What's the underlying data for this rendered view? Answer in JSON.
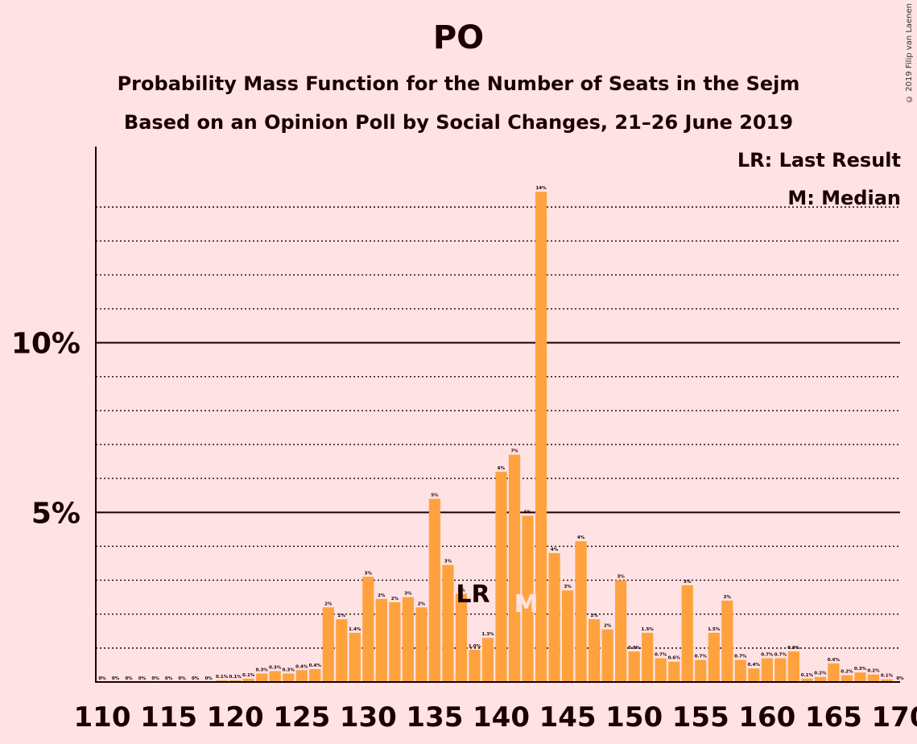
{
  "title": "PO",
  "subtitle1": "Probability Mass Function for the Number of Seats in the Sejm",
  "subtitle2": "Based on an Opinion Poll by Social Changes, 21–26 June 2019",
  "copyright": "© 2019 Filip van Laenen",
  "legend": {
    "lr": "LR: Last Result",
    "m": "M: Median"
  },
  "colors": {
    "background": "#fee2e4",
    "bar": "#ffa23e",
    "axis": "#1a0000",
    "marker_text_light": "#fee2e4"
  },
  "chart_data": {
    "type": "bar",
    "xlabel": "",
    "ylabel": "",
    "x_ticks": [
      110,
      115,
      120,
      125,
      130,
      135,
      140,
      145,
      150,
      155,
      160,
      165,
      170
    ],
    "y_ticks": [
      {
        "value": 5,
        "label": "5%"
      },
      {
        "value": 10,
        "label": "10%"
      }
    ],
    "ylim": [
      0,
      15.7
    ],
    "minor_gridlines": [
      1,
      2,
      3,
      4,
      6,
      7,
      8,
      9,
      11,
      12,
      13,
      14
    ],
    "grid": true,
    "last_result_seat": 138,
    "median_seat": 142,
    "markers": {
      "lr": "LR",
      "m": "M"
    },
    "seats": [
      110,
      111,
      112,
      113,
      114,
      115,
      116,
      117,
      118,
      119,
      120,
      121,
      122,
      123,
      124,
      125,
      126,
      127,
      128,
      129,
      130,
      131,
      132,
      133,
      134,
      135,
      136,
      137,
      138,
      139,
      140,
      141,
      142,
      143,
      144,
      145,
      146,
      147,
      148,
      149,
      150,
      151,
      152,
      153,
      154,
      155,
      156,
      157,
      158,
      159,
      160,
      161,
      162,
      163,
      164,
      165,
      166,
      167,
      168,
      169,
      170
    ],
    "values": [
      0,
      0,
      0,
      0,
      0,
      0,
      0,
      0,
      0,
      0.05,
      0.05,
      0.1,
      0.25,
      0.32,
      0.25,
      0.35,
      0.38,
      2.2,
      1.85,
      1.45,
      3.1,
      2.45,
      2.35,
      2.5,
      2.2,
      5.4,
      3.45,
      2.6,
      0.95,
      1.3,
      6.2,
      6.7,
      4.9,
      14.45,
      3.8,
      2.7,
      4.15,
      1.85,
      1.55,
      3.0,
      0.9,
      1.45,
      0.7,
      0.6,
      2.85,
      0.65,
      1.45,
      2.4,
      0.65,
      0.4,
      0.7,
      0.7,
      0.9,
      0.1,
      0.15,
      0.55,
      0.2,
      0.28,
      0.22,
      0.08,
      0
    ],
    "labels": [
      "0%",
      "0%",
      "0%",
      "0%",
      "0%",
      "0%",
      "0%",
      "0%",
      "0%",
      "0.1%",
      "0.1%",
      "0.1%",
      "0.3%",
      "0.3%",
      "0.3%",
      "0.4%",
      "0.4%",
      "2%",
      "2%",
      "1.4%",
      "3%",
      "2%",
      "2%",
      "3%",
      "2%",
      "5%",
      "3%",
      "3%",
      "1.0%",
      "1.3%",
      "6%",
      "7%",
      "5%",
      "14%",
      "4%",
      "3%",
      "4%",
      "2%",
      "2%",
      "3%",
      "0.9%",
      "1.5%",
      "0.7%",
      "0.6%",
      "3%",
      "0.7%",
      "1.5%",
      "2%",
      "0.7%",
      "0.4%",
      "0.7%",
      "0.7%",
      "0.9%",
      "0.1%",
      "0.2%",
      "0.6%",
      "0.2%",
      "0.3%",
      "0.2%",
      "0.1%",
      "0%"
    ]
  }
}
